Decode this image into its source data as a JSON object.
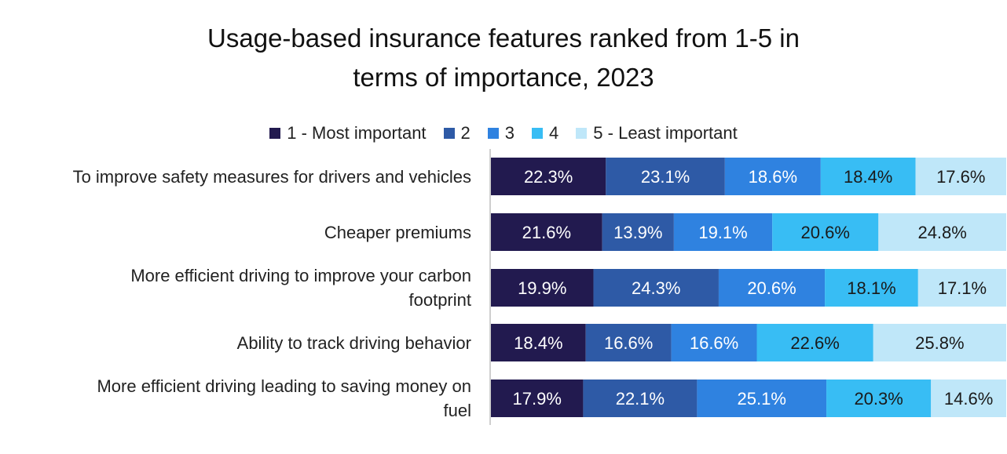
{
  "chart_data": {
    "type": "bar",
    "orientation": "horizontal",
    "stacked": true,
    "normalized": true,
    "title": "Usage-based insurance features ranked from 1-5 in terms of importance, 2023",
    "title_lines": [
      "Usage-based insurance features ranked from 1-5 in",
      "terms of importance, 2023"
    ],
    "legend_position": "top",
    "categories": [
      "To improve safety measures for drivers and vehicles",
      "Cheaper premiums",
      "More efficient driving to improve your carbon footprint",
      "Ability to track driving behavior",
      "More efficient driving leading to saving money on fuel"
    ],
    "category_lines": [
      [
        "To improve safety measures for drivers and vehicles"
      ],
      [
        "Cheaper premiums"
      ],
      [
        "More efficient driving to improve your carbon",
        "footprint"
      ],
      [
        "Ability to track driving behavior"
      ],
      [
        "More efficient driving leading to saving money on",
        "fuel"
      ]
    ],
    "series": [
      {
        "name": "1 - Most important",
        "color": "#221a4f",
        "label_color": "#ffffff",
        "values": [
          22.3,
          21.6,
          19.9,
          18.4,
          17.9
        ]
      },
      {
        "name": "2",
        "color": "#2e5aa6",
        "label_color": "#ffffff",
        "values": [
          23.1,
          13.9,
          24.3,
          16.6,
          22.1
        ]
      },
      {
        "name": "3",
        "color": "#2f82e0",
        "label_color": "#ffffff",
        "values": [
          18.6,
          19.1,
          20.6,
          16.6,
          25.1
        ]
      },
      {
        "name": "4",
        "color": "#38bdf4",
        "label_color": "#1a1a1a",
        "values": [
          18.4,
          20.6,
          18.1,
          22.6,
          20.3
        ]
      },
      {
        "name": "5 - Least important",
        "color": "#bfe7f9",
        "label_color": "#1a1a1a",
        "values": [
          17.6,
          24.8,
          17.1,
          25.8,
          14.6
        ]
      }
    ],
    "value_suffix": "%",
    "grid": false
  }
}
